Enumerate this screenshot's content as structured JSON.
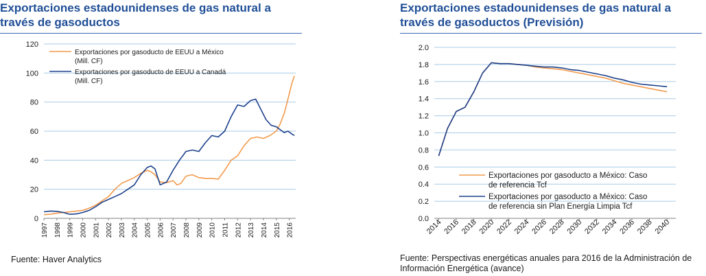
{
  "charts": {
    "left": {
      "title": "Exportaciones estadounidenses de gas natural a través de gasoductos",
      "source": "Fuente: Haver Analytics"
    },
    "right": {
      "title": "Exportaciones estadounidenses de gas natural a través de gasoductos (Previsión)",
      "source": "Fuente: Perspectivas energéticas anuales para 2016 de la Administración de Información Energética (avance)"
    }
  },
  "colors": {
    "orange": "#f39a4c",
    "navy": "#1b3f8b",
    "grid": "#a9cbe6",
    "title": "#1f4e96"
  },
  "chart_data": [
    {
      "type": "line",
      "title": "Exportaciones estadounidenses de gas natural a través de gasoductos",
      "ylim": [
        0,
        120
      ],
      "yticks": [
        "0",
        "20",
        "40",
        "60",
        "80",
        "100",
        "120"
      ],
      "xticks": [
        "1997",
        "1998",
        "1999",
        "2000",
        "2001",
        "2002",
        "2003",
        "2004",
        "2005",
        "2006",
        "2007",
        "2008",
        "2009",
        "2010",
        "2011",
        "2012",
        "2013",
        "2014",
        "2015",
        "2016"
      ],
      "xlim": [
        1997,
        2016.5
      ],
      "grid": true,
      "legend_position": "top-left",
      "series": [
        {
          "name": "Exportaciones por gasoducto de EEUU a México (Mill. CF)",
          "color": "#f39a4c",
          "x": [
            1997.0,
            1997.5,
            1998.0,
            1998.5,
            1999.0,
            1999.5,
            2000.0,
            2000.5,
            2001.0,
            2001.5,
            2002.0,
            2002.5,
            2003.0,
            2003.5,
            2004.0,
            2004.5,
            2005.0,
            2005.3,
            2005.6,
            2006.0,
            2006.5,
            2007.0,
            2007.3,
            2007.6,
            2008.0,
            2008.5,
            2009.0,
            2009.5,
            2010.0,
            2010.5,
            2011.0,
            2011.5,
            2012.0,
            2012.5,
            2013.0,
            2013.5,
            2014.0,
            2014.5,
            2015.0,
            2015.3,
            2015.6,
            2015.9,
            2016.2,
            2016.4
          ],
          "y": [
            2.5,
            2.8,
            3.5,
            4.0,
            4.5,
            5.0,
            5.5,
            7.0,
            9.0,
            12.0,
            15.0,
            20.0,
            24.0,
            26.0,
            28.0,
            31.0,
            33.0,
            32.0,
            30.0,
            25.0,
            24.5,
            26.0,
            23.0,
            24.0,
            29.0,
            30.0,
            28.0,
            27.5,
            27.5,
            27.0,
            33.0,
            40.0,
            43.0,
            50.0,
            55.0,
            56.0,
            55.0,
            57.0,
            60.0,
            65.0,
            72.0,
            82.0,
            93.0,
            98.0
          ]
        },
        {
          "name": "Exportaciones por gasoducto de EEUU a Canadá (Mill. CF)",
          "color": "#1b3f8b",
          "x": [
            1997.0,
            1997.5,
            1998.0,
            1998.5,
            1999.0,
            1999.5,
            2000.0,
            2000.5,
            2001.0,
            2001.5,
            2002.0,
            2002.5,
            2003.0,
            2003.5,
            2004.0,
            2004.5,
            2005.0,
            2005.3,
            2005.6,
            2006.0,
            2006.5,
            2007.0,
            2007.5,
            2008.0,
            2008.5,
            2009.0,
            2009.5,
            2010.0,
            2010.5,
            2011.0,
            2011.5,
            2012.0,
            2012.5,
            2013.0,
            2013.4,
            2013.8,
            2014.2,
            2014.6,
            2015.0,
            2015.3,
            2015.6,
            2015.9,
            2016.2,
            2016.4
          ],
          "y": [
            4.5,
            5.0,
            4.8,
            4.0,
            2.8,
            3.0,
            4.0,
            5.5,
            8.0,
            11.0,
            13.0,
            15.0,
            17.0,
            20.0,
            23.0,
            30.0,
            35.0,
            36.0,
            34.0,
            23.0,
            25.0,
            33.0,
            40.0,
            46.0,
            47.0,
            46.0,
            52.0,
            57.0,
            56.0,
            60.0,
            70.0,
            78.0,
            77.0,
            81.0,
            82.0,
            75.0,
            68.0,
            64.0,
            63.0,
            61.0,
            59.0,
            60.0,
            58.0,
            57.0
          ]
        }
      ]
    },
    {
      "type": "line",
      "title": "Exportaciones estadounidenses de gas natural a través de gasoductos (Previsión)",
      "ylim": [
        0,
        2.0
      ],
      "yticks": [
        "0.0",
        "0.2",
        "0.4",
        "0.6",
        "0.8",
        "1.0",
        "1.2",
        "1.4",
        "1.6",
        "1.8",
        "2.0"
      ],
      "xticks": [
        "2014",
        "2016",
        "2018",
        "2020",
        "2022",
        "2024",
        "2026",
        "2028",
        "2030",
        "2032",
        "2034",
        "2036",
        "2038",
        "2040"
      ],
      "xlim": [
        2013.5,
        2041
      ],
      "grid": true,
      "legend_position": "bottom-right",
      "series": [
        {
          "name": "Exportaciones por gasoducto a México: Caso de referencia Tcf",
          "color": "#f39a4c",
          "x": [
            2014,
            2015,
            2016,
            2017,
            2018,
            2019,
            2020,
            2021,
            2022,
            2023,
            2024,
            2025,
            2026,
            2027,
            2028,
            2029,
            2030,
            2031,
            2032,
            2033,
            2034,
            2035,
            2036,
            2037,
            2038,
            2039,
            2040
          ],
          "y": [
            0.73,
            1.05,
            1.25,
            1.3,
            1.48,
            1.7,
            1.82,
            1.81,
            1.81,
            1.8,
            1.79,
            1.77,
            1.76,
            1.75,
            1.74,
            1.72,
            1.7,
            1.68,
            1.66,
            1.64,
            1.61,
            1.58,
            1.56,
            1.54,
            1.52,
            1.5,
            1.48
          ]
        },
        {
          "name": "Exportaciones por gasoducto a México: Caso de referencia sin Plan Energía Limpia Tcf",
          "color": "#1b3f8b",
          "x": [
            2014,
            2015,
            2016,
            2017,
            2018,
            2019,
            2020,
            2021,
            2022,
            2023,
            2024,
            2025,
            2026,
            2027,
            2028,
            2029,
            2030,
            2031,
            2032,
            2033,
            2034,
            2035,
            2036,
            2037,
            2038,
            2039,
            2040
          ],
          "y": [
            0.73,
            1.05,
            1.25,
            1.3,
            1.48,
            1.7,
            1.82,
            1.81,
            1.81,
            1.8,
            1.79,
            1.78,
            1.77,
            1.77,
            1.76,
            1.74,
            1.73,
            1.71,
            1.69,
            1.67,
            1.64,
            1.62,
            1.59,
            1.57,
            1.56,
            1.55,
            1.54
          ]
        }
      ]
    }
  ]
}
